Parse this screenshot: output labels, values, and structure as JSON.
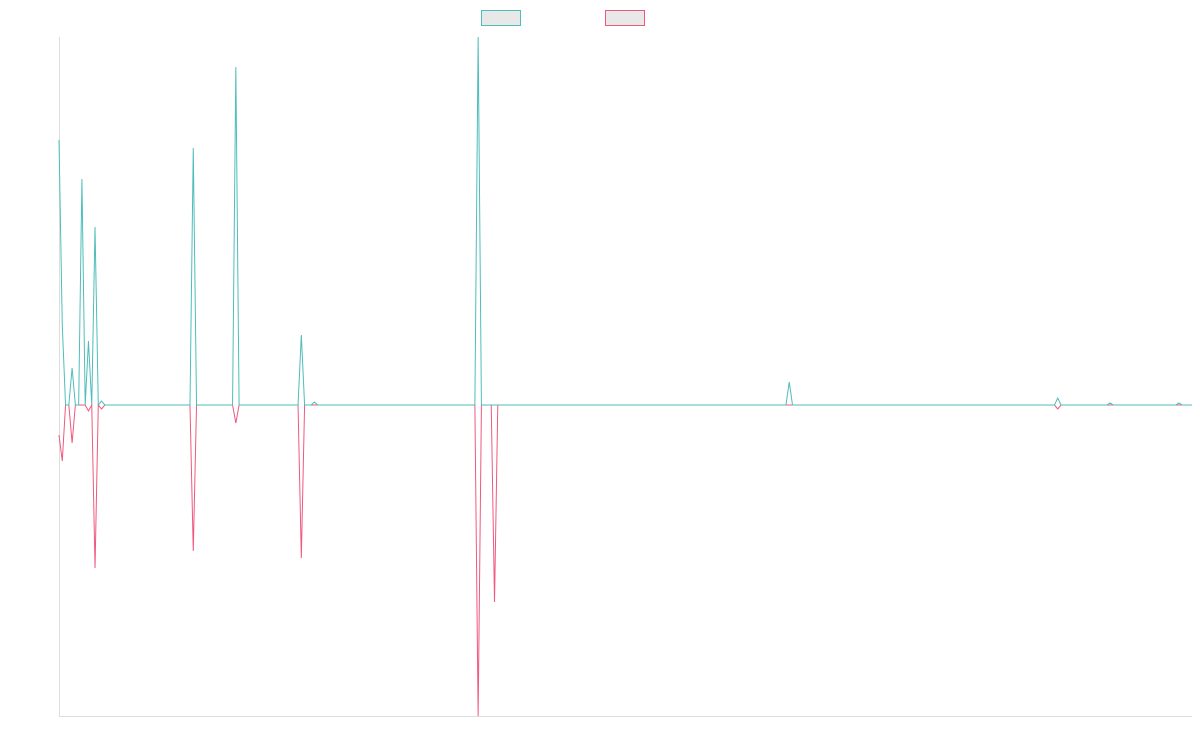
{
  "chart_data": {
    "type": "line",
    "ylim": [
      -311,
      368
    ],
    "series": [
      {
        "color": "#4fbdba",
        "values": [
          265,
          80,
          0,
          0,
          37,
          0,
          0,
          226,
          0,
          64,
          0,
          178,
          0,
          4,
          0,
          0,
          0,
          0,
          0,
          0,
          0,
          0,
          0,
          0,
          0,
          0,
          0,
          0,
          0,
          0,
          0,
          0,
          0,
          0,
          0,
          0,
          0,
          0,
          0,
          0,
          0,
          257,
          0,
          0,
          0,
          0,
          0,
          0,
          0,
          0,
          0,
          0,
          0,
          0,
          338,
          0,
          0,
          0,
          0,
          0,
          0,
          0,
          0,
          0,
          0,
          0,
          0,
          0,
          0,
          0,
          0,
          0,
          0,
          0,
          70,
          0,
          0,
          0,
          3,
          0,
          0,
          0,
          0,
          0,
          0,
          0,
          0,
          0,
          0,
          0,
          0,
          0,
          0,
          0,
          0,
          0,
          0,
          0,
          0,
          0,
          0,
          0,
          0,
          0,
          0,
          0,
          0,
          0,
          0,
          0,
          0,
          0,
          0,
          0,
          0,
          0,
          0,
          0,
          0,
          0,
          0,
          0,
          0,
          0,
          0,
          0,
          0,
          0,
          368,
          0,
          0,
          0,
          0,
          0,
          0,
          0,
          0,
          0,
          0,
          0,
          0,
          0,
          0,
          0,
          0,
          0,
          0,
          0,
          0,
          0,
          0,
          0,
          0,
          0,
          0,
          0,
          0,
          0,
          0,
          0,
          0,
          0,
          0,
          0,
          0,
          0,
          0,
          0,
          0,
          0,
          0,
          0,
          0,
          0,
          0,
          0,
          0,
          0,
          0,
          0,
          0,
          0,
          0,
          0,
          0,
          0,
          0,
          0,
          0,
          0,
          0,
          0,
          0,
          0,
          0,
          0,
          0,
          0,
          0,
          0,
          0,
          0,
          0,
          0,
          0,
          0,
          0,
          0,
          0,
          0,
          0,
          0,
          0,
          0,
          0,
          0,
          0,
          0,
          0,
          0,
          0,
          0,
          0,
          23,
          0,
          0,
          0,
          0,
          0,
          0,
          0,
          0,
          0,
          0,
          0,
          0,
          0,
          0,
          0,
          0,
          0,
          0,
          0,
          0,
          0,
          0,
          0,
          0,
          0,
          0,
          0,
          0,
          0,
          0,
          0,
          0,
          0,
          0,
          0,
          0,
          0,
          0,
          0,
          0,
          0,
          0,
          0,
          0,
          0,
          0,
          0,
          0,
          0,
          0,
          0,
          0,
          0,
          0,
          0,
          0,
          0,
          0,
          0,
          0,
          0,
          0,
          0,
          0,
          0,
          0,
          0,
          0,
          0,
          0,
          0,
          0,
          0,
          0,
          0,
          0,
          0,
          0,
          0,
          0,
          0,
          7,
          0,
          0,
          0,
          0,
          0,
          0,
          0,
          0,
          0,
          0,
          0,
          0,
          0,
          0,
          0,
          2,
          0,
          0,
          0,
          0,
          0,
          0,
          0,
          0,
          0,
          0,
          0,
          0,
          0,
          0,
          0,
          0,
          0,
          0,
          0,
          0,
          2,
          0,
          0,
          0,
          0
        ]
      },
      {
        "color": "#f0587e",
        "values": [
          -30,
          -56,
          0,
          0,
          -38,
          0,
          0,
          0,
          0,
          -6,
          0,
          -163,
          0,
          -4,
          0,
          0,
          0,
          0,
          0,
          0,
          0,
          0,
          0,
          0,
          0,
          0,
          0,
          0,
          0,
          0,
          0,
          0,
          0,
          0,
          0,
          0,
          0,
          0,
          0,
          0,
          0,
          -146,
          0,
          0,
          0,
          0,
          0,
          0,
          0,
          0,
          0,
          0,
          0,
          0,
          -18,
          0,
          0,
          0,
          0,
          0,
          0,
          0,
          0,
          0,
          0,
          0,
          0,
          0,
          0,
          0,
          0,
          0,
          0,
          0,
          -153,
          0,
          0,
          0,
          0,
          0,
          0,
          0,
          0,
          0,
          0,
          0,
          0,
          0,
          0,
          0,
          0,
          0,
          0,
          0,
          0,
          0,
          0,
          0,
          0,
          0,
          0,
          0,
          0,
          0,
          0,
          0,
          0,
          0,
          0,
          0,
          0,
          0,
          0,
          0,
          0,
          0,
          0,
          0,
          0,
          0,
          0,
          0,
          0,
          0,
          0,
          0,
          0,
          0,
          -311,
          0,
          0,
          0,
          0,
          -197,
          0,
          0,
          0,
          0,
          0,
          0,
          0,
          0,
          0,
          0,
          0,
          0,
          0,
          0,
          0,
          0,
          0,
          0,
          0,
          0,
          0,
          0,
          0,
          0,
          0,
          0,
          0,
          0,
          0,
          0,
          0,
          0,
          0,
          0,
          0,
          0,
          0,
          0,
          0,
          0,
          0,
          0,
          0,
          0,
          0,
          0,
          0,
          0,
          0,
          0,
          0,
          0,
          0,
          0,
          0,
          0,
          0,
          0,
          0,
          0,
          0,
          0,
          0,
          0,
          0,
          0,
          0,
          0,
          0,
          0,
          0,
          0,
          0,
          0,
          0,
          0,
          0,
          0,
          0,
          0,
          0,
          0,
          0,
          0,
          0,
          0,
          0,
          0,
          0,
          0,
          0,
          0,
          0,
          0,
          0,
          0,
          0,
          0,
          0,
          0,
          0,
          0,
          0,
          0,
          0,
          0,
          0,
          0,
          0,
          0,
          0,
          0,
          0,
          0,
          0,
          0,
          0,
          0,
          0,
          0,
          0,
          0,
          0,
          0,
          0,
          0,
          0,
          0,
          0,
          0,
          0,
          0,
          0,
          0,
          0,
          0,
          0,
          0,
          0,
          0,
          0,
          0,
          0,
          0,
          0,
          0,
          0,
          0,
          0,
          0,
          0,
          0,
          0,
          0,
          0,
          0,
          0,
          0,
          0,
          0,
          0,
          0,
          0,
          0,
          0,
          0,
          0,
          0,
          0,
          0,
          0,
          -4,
          0,
          0,
          0,
          0,
          0,
          0,
          0,
          0,
          0,
          0,
          0,
          0,
          0,
          0,
          0,
          0,
          0,
          0,
          0,
          0,
          0,
          0,
          0,
          0,
          0,
          0,
          0,
          0,
          0,
          0,
          0,
          0,
          0,
          0,
          0,
          0,
          0,
          0,
          0,
          0,
          0
        ]
      }
    ]
  }
}
